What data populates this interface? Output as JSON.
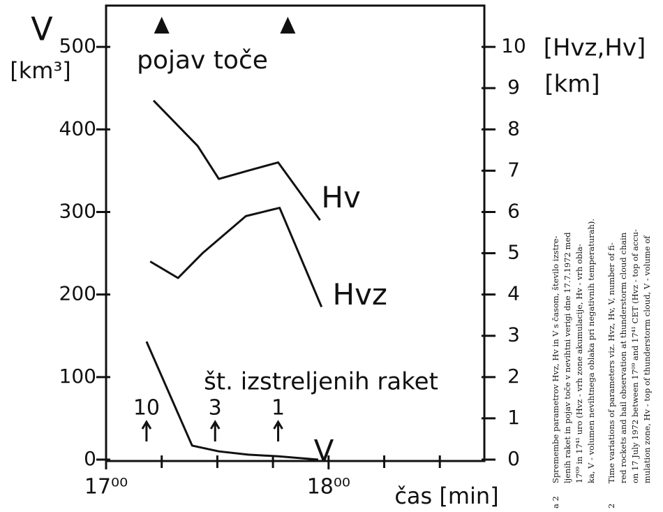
{
  "chart_data": {
    "type": "line",
    "xlim": [
      0,
      102
    ],
    "xticks": [
      {
        "value": 0,
        "label": "17⁰⁰"
      },
      {
        "value": 60,
        "label": "18⁰⁰"
      }
    ],
    "xminorticks": [
      15,
      30,
      45,
      75,
      90
    ],
    "ylim": [
      0,
      550
    ],
    "yticks": [
      0,
      100,
      200,
      300,
      400,
      500
    ],
    "y2lim": [
      0,
      11
    ],
    "y2ticks": [
      0,
      1,
      2,
      3,
      4,
      5,
      6,
      7,
      8,
      9,
      10
    ],
    "ylabel": [
      "V",
      "[km³]"
    ],
    "y2label": [
      "[Hvz,Hv]",
      "[km]"
    ],
    "xlabel": "čas [min]",
    "series": [
      {
        "name": "Hv",
        "color": "#111111",
        "axis": "y2",
        "x": [
          12.8,
          24.7,
          30.4,
          38.3,
          46.4,
          57.7
        ],
        "values": [
          8.7,
          7.6,
          6.8,
          7.0,
          7.2,
          5.8
        ]
      },
      {
        "name": "Hvz",
        "color": "#111111",
        "axis": "y2",
        "x": [
          11.9,
          19.4,
          26.0,
          37.7,
          46.8,
          58.1
        ],
        "values": [
          4.8,
          4.4,
          5.0,
          5.9,
          6.1,
          3.7
        ]
      },
      {
        "name": "V",
        "color": "#111111",
        "x": [
          10.9,
          23.2,
          30.4,
          38.3,
          46.4,
          57.2
        ],
        "values": [
          143,
          17,
          10,
          6,
          4,
          0
        ]
      }
    ],
    "hail": {
      "label": "pojav toče",
      "x": [
        15,
        49
      ]
    },
    "rockets": {
      "label": "št. izstreljenih raket",
      "x": [
        10.9,
        29.4,
        46.4
      ],
      "values": [
        10,
        3,
        1
      ]
    },
    "caption": [
      {
        "number": "a 2",
        "lines": [
          "Spremembe parametrov Hvz, Hv in V s časom, število izstre-",
          "ljenih raket in pojav toče v nevihtni verigi dne 17.7.1972 med",
          "17⁰⁹ in 17⁴¹ uro (Hvz - vrh zone akumulacije, Hv - vrh obla-",
          "ka, V - volumen nevihtnega oblaka pri negativnih temperaturah)."
        ]
      },
      {
        "number": "2",
        "lines": [
          "Time variations of parameters viz. Hvz, Hv, V, number of fi-",
          "red rockets and hail observation at thunderstorm cloud chain",
          "on 17 July 1972 between 17⁰⁹ and 17⁴¹ CET (Hvz - top of accu-",
          "mulation zone, Hv - top of thunderstorm cloud, V - volume of"
        ]
      }
    ]
  }
}
